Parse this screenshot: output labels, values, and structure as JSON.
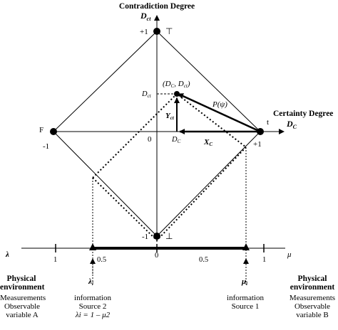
{
  "axes": {
    "contradiction_title": "Contradiction Degree",
    "contradiction_symbol": "D",
    "contradiction_sub": "ct",
    "certainty_title": "Certainty Degree",
    "certainty_symbol": "D",
    "certainty_sub": "C"
  },
  "vertices": {
    "top_value": "+1",
    "top_symbol": "⊤",
    "bottom_value": "-1",
    "bottom_symbol": "⊥",
    "left_symbol": "F",
    "left_value": "-1",
    "right_symbol": "t",
    "right_value": "+1",
    "origin": "0"
  },
  "point": {
    "label_open": "(",
    "dc_sym": "D",
    "dc_sub": "C",
    "comma": ", ",
    "dct_sym": "D",
    "dct_sub": "ct",
    "label_close": ")",
    "p_label": "P",
    "p_arg": "(ψ)",
    "dct_axis_sym": "D",
    "dct_axis_sub": "ct",
    "dc_axis_sym": "D",
    "dc_axis_sub": "C",
    "y_sym": "Y",
    "y_sub": "ct",
    "x_sym": "X",
    "x_sub": "C"
  },
  "scale": {
    "lambda": "λ",
    "mu": "μ",
    "one_left": "1",
    "half_left": "0.5",
    "zero": "0",
    "half_right": "0.5",
    "one_right": "1",
    "lambda_i_sym": "λ",
    "lambda_i_sub": "i",
    "mu_i_sym": "μ",
    "mu_i_sub": "i"
  },
  "left_panel": {
    "title_line1": "Physical",
    "title_line2": "environment",
    "line1": "Measurements",
    "line2": "Observable",
    "line3": "variable A"
  },
  "source2": {
    "line1": "information",
    "line2": "Source 2",
    "formula": "λi = 1 – μ2"
  },
  "source1": {
    "line1": "information",
    "line2": "Source 1"
  },
  "right_panel": {
    "title_line1": "Physical",
    "title_line2": "environment",
    "line1": "Measurements",
    "line2": "Observable",
    "line3": "variable B"
  }
}
